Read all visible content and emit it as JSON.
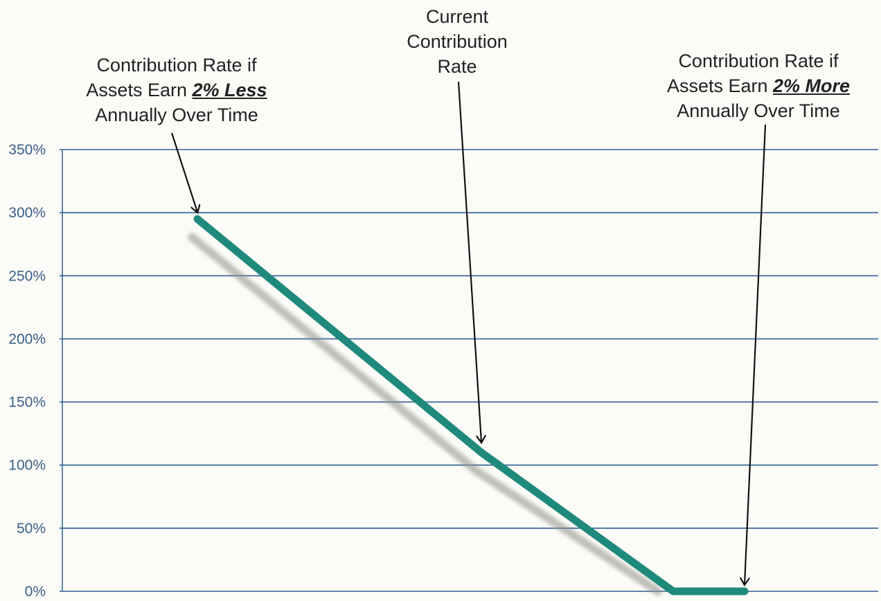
{
  "chart_data": {
    "type": "line",
    "x": [
      1,
      2,
      3,
      4
    ],
    "series": [
      {
        "values": [
          295,
          110,
          0,
          0
        ]
      }
    ],
    "x_points_meaning": [
      "Assets Earn 2% Less",
      "Current",
      "",
      "Assets Earn 2% More"
    ],
    "ylim": [
      0,
      350
    ],
    "yticks": [
      0,
      50,
      100,
      150,
      200,
      250,
      300,
      350
    ],
    "ytick_labels": [
      "0%",
      "50%",
      "100%",
      "150%",
      "200%",
      "250%",
      "300%",
      "350%"
    ],
    "grid": true,
    "line_color": "#1f8a7c",
    "grid_color": "#2f5f95",
    "annotations": [
      {
        "id": "less",
        "lines": [
          "Contribution Rate if",
          "Assets Earn ",
          "2% Less",
          "Annually Over Time"
        ],
        "points_to_x": 1,
        "points_to_y": 295
      },
      {
        "id": "current",
        "lines": [
          "Current",
          "Contribution",
          "Rate"
        ],
        "points_to_x": 2,
        "points_to_y": 110
      },
      {
        "id": "more",
        "lines": [
          "Contribution Rate if",
          "Assets Earn ",
          "2% More",
          "Annually Over Time"
        ],
        "points_to_x": 4,
        "points_to_y": 0
      }
    ]
  }
}
